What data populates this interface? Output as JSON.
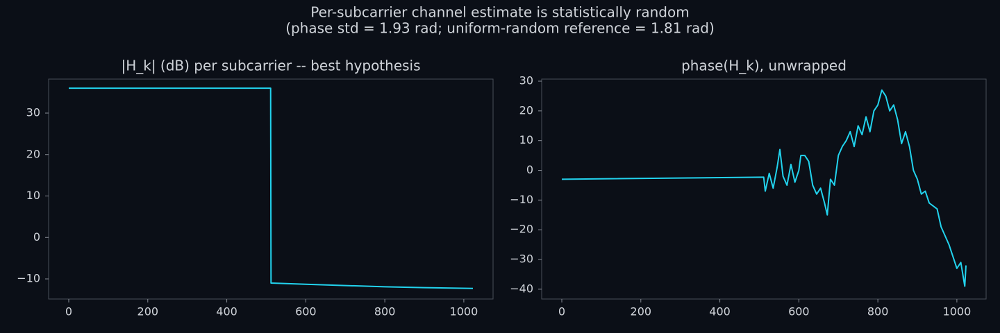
{
  "title": "Per-subcarrier channel estimate is statistically random",
  "subtitle": "(phase std = 1.93 rad; uniform-random reference = 1.81 rad)",
  "chart_data": [
    {
      "type": "line",
      "title": "|H_k| (dB) per subcarrier -- best hypothesis",
      "x": [
        0,
        100,
        200,
        300,
        400,
        511,
        512,
        600,
        700,
        800,
        900,
        1023
      ],
      "series": [
        {
          "color": "#22d3ee",
          "values": [
            36,
            36,
            36,
            36,
            36,
            36,
            -11,
            -11.3,
            -11.6,
            -11.9,
            -12.1,
            -12.3
          ]
        }
      ],
      "xlim": [
        -51,
        1074
      ],
      "xticks": [
        0,
        200,
        400,
        600,
        800,
        1000
      ],
      "ylim": [
        -14.85,
        38.2
      ],
      "yticks": [
        {
          "value": -10,
          "label": "−10"
        },
        0,
        10,
        20,
        30
      ]
    },
    {
      "type": "line",
      "title": "phase(H_k), unwrapped",
      "x": [
        0,
        511,
        515,
        525,
        535,
        545,
        552,
        560,
        570,
        580,
        590,
        600,
        605,
        615,
        625,
        635,
        645,
        655,
        665,
        672,
        680,
        690,
        700,
        710,
        720,
        730,
        740,
        750,
        760,
        770,
        780,
        790,
        800,
        810,
        820,
        830,
        840,
        850,
        860,
        870,
        880,
        890,
        900,
        910,
        920,
        930,
        940,
        950,
        960,
        970,
        980,
        990,
        1000,
        1010,
        1020,
        1023
      ],
      "series": [
        {
          "color": "#22d3ee",
          "values": [
            -3,
            -2.3,
            -7,
            -1,
            -6,
            1,
            7,
            -2,
            -5,
            2,
            -4,
            0,
            5,
            5,
            3,
            -5,
            -8,
            -6,
            -11,
            -15,
            -3,
            -5,
            5,
            8,
            10,
            13,
            8,
            15,
            12,
            18,
            13,
            20,
            22,
            27,
            25,
            20,
            22,
            17,
            9,
            13,
            8,
            0,
            -3,
            -8,
            -7,
            -11,
            -12,
            -13,
            -19,
            -22,
            -25,
            -29,
            -33,
            -31,
            -39,
            -32
          ]
        }
      ],
      "xlim": [
        -51,
        1074
      ],
      "xticks": [
        0,
        200,
        400,
        600,
        800,
        1000
      ],
      "ylim": [
        -43.3,
        30.7
      ],
      "yticks": [
        {
          "value": -40,
          "label": "−40"
        },
        {
          "value": -30,
          "label": "−30"
        },
        {
          "value": -20,
          "label": "−20"
        },
        {
          "value": -10,
          "label": "−10"
        },
        0,
        10,
        20,
        30
      ]
    }
  ]
}
